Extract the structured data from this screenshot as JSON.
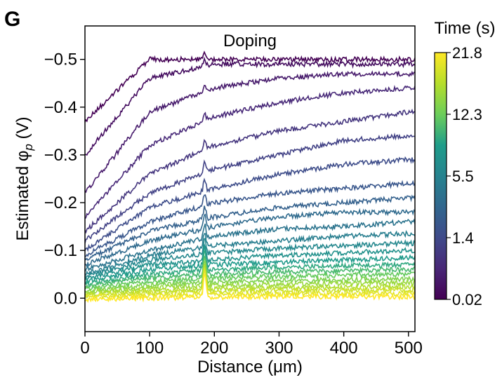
{
  "panel_label": "G",
  "chart_data": {
    "type": "line",
    "title": "Doping",
    "xlabel": "Distance (μm)",
    "ylabel_main": "Estimated φ",
    "ylabel_sub": "p",
    "ylabel_unit": " (V)",
    "xlim": [
      0,
      510
    ],
    "ylim": [
      0.07,
      -0.57
    ],
    "y_inverted": true,
    "x_ticks": [
      0,
      100,
      200,
      300,
      400,
      500
    ],
    "x_tick_labels": [
      "0",
      "100",
      "200",
      "300",
      "400",
      "500"
    ],
    "y_ticks": [
      -0.5,
      -0.4,
      -0.3,
      -0.2,
      -0.1,
      0.0
    ],
    "y_tick_labels": [
      "−0.5",
      "−0.4",
      "−0.3",
      "−0.2",
      "−0.1",
      "0.0"
    ],
    "grid": false,
    "colorscale": "viridis",
    "series_profiles": [
      {
        "time_s": 0.02,
        "values_at_0_100_200_300_400_500": [
          -0.37,
          -0.5,
          -0.5,
          -0.5,
          -0.5,
          -0.5
        ]
      },
      {
        "time_s": 0.05,
        "values_at_0_100_200_300_400_500": [
          -0.3,
          -0.46,
          -0.49,
          -0.49,
          -0.49,
          -0.49
        ]
      },
      {
        "time_s": 0.1,
        "values_at_0_100_200_300_400_500": [
          -0.22,
          -0.39,
          -0.44,
          -0.46,
          -0.47,
          -0.47
        ]
      },
      {
        "time_s": 0.2,
        "values_at_0_100_200_300_400_500": [
          -0.17,
          -0.32,
          -0.38,
          -0.41,
          -0.43,
          -0.44
        ]
      },
      {
        "time_s": 0.35,
        "values_at_0_100_200_300_400_500": [
          -0.14,
          -0.26,
          -0.32,
          -0.35,
          -0.37,
          -0.39
        ]
      },
      {
        "time_s": 0.55,
        "values_at_0_100_200_300_400_500": [
          -0.12,
          -0.22,
          -0.27,
          -0.3,
          -0.33,
          -0.34
        ]
      },
      {
        "time_s": 0.8,
        "values_at_0_100_200_300_400_500": [
          -0.1,
          -0.19,
          -0.23,
          -0.26,
          -0.28,
          -0.29
        ]
      },
      {
        "time_s": 1.1,
        "values_at_0_100_200_300_400_500": [
          -0.09,
          -0.16,
          -0.2,
          -0.22,
          -0.23,
          -0.24
        ]
      },
      {
        "time_s": 1.4,
        "values_at_0_100_200_300_400_500": [
          -0.08,
          -0.14,
          -0.17,
          -0.19,
          -0.2,
          -0.21
        ]
      },
      {
        "time_s": 1.9,
        "values_at_0_100_200_300_400_500": [
          -0.07,
          -0.12,
          -0.15,
          -0.17,
          -0.18,
          -0.18
        ]
      },
      {
        "time_s": 2.5,
        "values_at_0_100_200_300_400_500": [
          -0.06,
          -0.1,
          -0.13,
          -0.145,
          -0.15,
          -0.16
        ]
      },
      {
        "time_s": 3.2,
        "values_at_0_100_200_300_400_500": [
          -0.05,
          -0.09,
          -0.11,
          -0.12,
          -0.13,
          -0.135
        ]
      },
      {
        "time_s": 4.2,
        "values_at_0_100_200_300_400_500": [
          -0.045,
          -0.08,
          -0.095,
          -0.105,
          -0.11,
          -0.115
        ]
      },
      {
        "time_s": 5.5,
        "values_at_0_100_200_300_400_500": [
          -0.04,
          -0.07,
          -0.08,
          -0.09,
          -0.095,
          -0.1
        ]
      },
      {
        "time_s": 7.0,
        "values_at_0_100_200_300_400_500": [
          -0.035,
          -0.06,
          -0.07,
          -0.075,
          -0.08,
          -0.085
        ]
      },
      {
        "time_s": 8.7,
        "values_at_0_100_200_300_400_500": [
          -0.03,
          -0.05,
          -0.06,
          -0.065,
          -0.068,
          -0.07
        ]
      },
      {
        "time_s": 10.5,
        "values_at_0_100_200_300_400_500": [
          -0.025,
          -0.042,
          -0.05,
          -0.055,
          -0.057,
          -0.06
        ]
      },
      {
        "time_s": 12.3,
        "values_at_0_100_200_300_400_500": [
          -0.02,
          -0.035,
          -0.042,
          -0.046,
          -0.048,
          -0.05
        ]
      },
      {
        "time_s": 14.2,
        "values_at_0_100_200_300_400_500": [
          -0.016,
          -0.028,
          -0.034,
          -0.037,
          -0.039,
          -0.04
        ]
      },
      {
        "time_s": 16.0,
        "values_at_0_100_200_300_400_500": [
          -0.012,
          -0.022,
          -0.027,
          -0.029,
          -0.031,
          -0.032
        ]
      },
      {
        "time_s": 17.8,
        "values_at_0_100_200_300_400_500": [
          -0.009,
          -0.016,
          -0.02,
          -0.022,
          -0.023,
          -0.024
        ]
      },
      {
        "time_s": 19.3,
        "values_at_0_100_200_300_400_500": [
          -0.006,
          -0.011,
          -0.014,
          -0.015,
          -0.016,
          -0.017
        ]
      },
      {
        "time_s": 20.6,
        "values_at_0_100_200_300_400_500": [
          -0.003,
          -0.006,
          -0.008,
          -0.009,
          -0.009,
          -0.01
        ]
      },
      {
        "time_s": 21.8,
        "values_at_0_100_200_300_400_500": [
          0.002,
          0.0,
          -0.002,
          -0.003,
          -0.003,
          -0.003
        ]
      }
    ],
    "colorbar": {
      "label": "Time (s)",
      "ticks": [
        {
          "label": "21.8",
          "fraction": 1.0
        },
        {
          "label": "12.3",
          "fraction": 0.75
        },
        {
          "label": "5.5",
          "fraction": 0.5
        },
        {
          "label": "1.4",
          "fraction": 0.25
        },
        {
          "label": "0.02",
          "fraction": 0.0
        }
      ],
      "colors": [
        "#440154",
        "#482777",
        "#3f4a8a",
        "#31678e",
        "#26838f",
        "#1f9d8a",
        "#6cce5a",
        "#b6de2b",
        "#fee825"
      ]
    }
  }
}
